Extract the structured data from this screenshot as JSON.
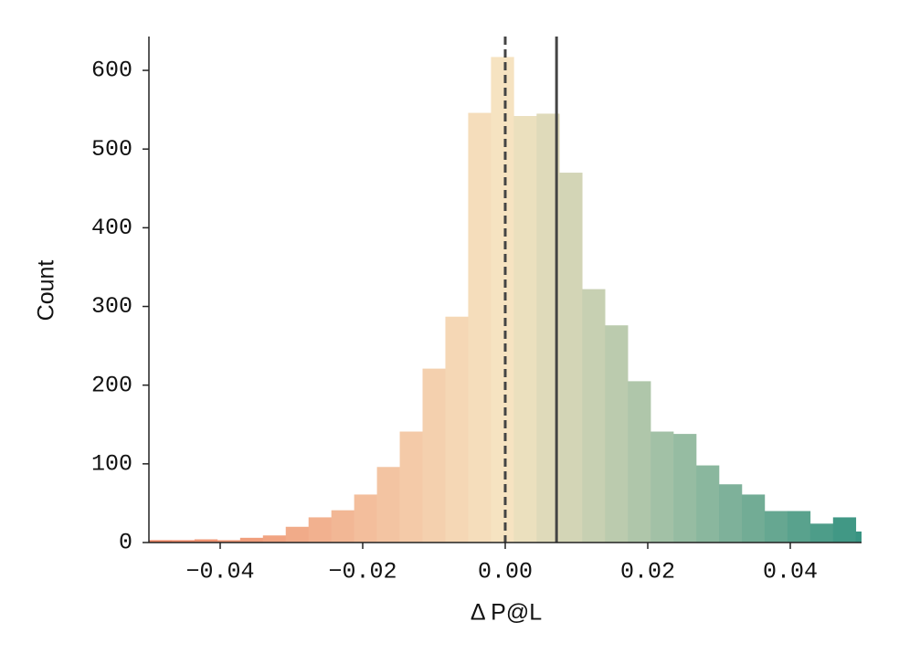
{
  "chart_data": {
    "type": "histogram",
    "xlabel": "Δ P@L",
    "ylabel": "Count",
    "bins": [
      -0.05,
      -0.0468,
      -0.0436,
      -0.0404,
      -0.0372,
      -0.034,
      -0.0308,
      -0.0276,
      -0.0244,
      -0.0212,
      -0.018,
      -0.0148,
      -0.0116,
      -0.0084,
      -0.0052,
      -0.002,
      0.0012,
      0.0044,
      0.0076,
      0.0108,
      0.014,
      0.0172,
      0.0204,
      0.0236,
      0.0268,
      0.03,
      0.0332,
      0.0364,
      0.0396,
      0.0428,
      0.046,
      0.0492,
      0.0524
    ],
    "values": [
      3,
      3,
      4,
      3,
      6,
      9,
      20,
      32,
      41,
      61,
      96,
      141,
      221,
      287,
      546,
      617,
      542,
      545,
      470,
      322,
      276,
      205,
      141,
      138,
      98,
      74,
      61,
      40,
      40,
      24,
      32,
      14
    ],
    "colormap": [
      "#ee8260",
      "#f6e4c2",
      "#389482"
    ],
    "xlim": [
      -0.05,
      0.05
    ],
    "xticks": [
      {
        "value": -0.04,
        "label": "−0.04"
      },
      {
        "value": -0.02,
        "label": "−0.02"
      },
      {
        "value": 0,
        "label": "0.00"
      },
      {
        "value": 0.02,
        "label": "0.02"
      },
      {
        "value": 0.04,
        "label": "0.04"
      }
    ],
    "ylim": [
      0,
      643
    ],
    "yticks": [
      0,
      100,
      200,
      300,
      400,
      500,
      600
    ],
    "vlines": [
      {
        "x": 0,
        "style": "dashed",
        "color": "#444444"
      },
      {
        "x": 0.0072,
        "style": "solid",
        "color": "#444444"
      }
    ],
    "grid": false
  }
}
